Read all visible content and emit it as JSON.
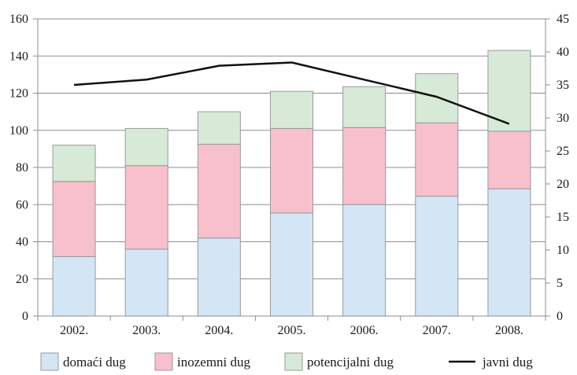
{
  "chart_data": {
    "type": "bar",
    "stacked": true,
    "title": "",
    "xlabel": "",
    "ylabel": "",
    "categories": [
      "2002.",
      "2003.",
      "2004.",
      "2005.",
      "2006.",
      "2007.",
      "2008."
    ],
    "series": [
      {
        "name": "domaći dug",
        "type": "bar",
        "axis": "left",
        "color": "#d3e6f6",
        "values": [
          32,
          36,
          42,
          55.5,
          60,
          64.5,
          68.5
        ]
      },
      {
        "name": "inozemni dug",
        "type": "bar",
        "axis": "left",
        "color": "#f7c0cc",
        "values": [
          40.5,
          45,
          50.5,
          45.5,
          41.5,
          39.5,
          31
        ]
      },
      {
        "name": "potencijalni dug",
        "type": "bar",
        "axis": "left",
        "color": "#d7ead7",
        "values": [
          19.5,
          20,
          17.5,
          20,
          22,
          26.5,
          43.5
        ]
      },
      {
        "name": "javni dug",
        "type": "line",
        "axis": "right",
        "color": "#111111",
        "values": [
          35,
          35.8,
          37.9,
          38.4,
          35.8,
          33.2,
          29.1
        ]
      }
    ],
    "y_left": {
      "min": 0,
      "max": 160,
      "ticks": [
        "0",
        "20",
        "40",
        "60",
        "80",
        "100",
        "120",
        "140",
        "160"
      ]
    },
    "y_right": {
      "min": 0,
      "max": 45,
      "ticks": [
        "0",
        "5",
        "10",
        "15",
        "20",
        "25",
        "30",
        "35",
        "40",
        "45"
      ]
    },
    "grid": true,
    "legend_position": "bottom"
  }
}
